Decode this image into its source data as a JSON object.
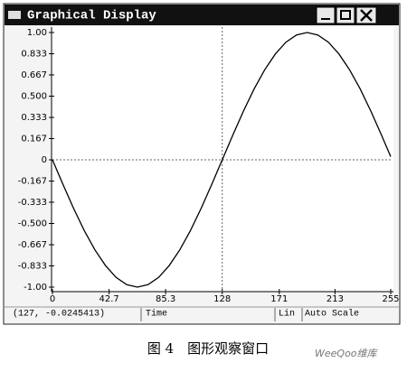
{
  "window": {
    "title": "Graphical Display"
  },
  "chart_data": {
    "type": "line",
    "x": [
      0,
      8,
      16,
      24,
      32,
      40,
      48,
      56,
      64,
      72,
      80,
      88,
      96,
      104,
      112,
      120,
      128,
      136,
      144,
      152,
      160,
      168,
      176,
      184,
      192,
      200,
      208,
      216,
      224,
      232,
      240,
      248,
      255
    ],
    "series": [
      {
        "color": "#000000",
        "values": [
          0,
          -0.195,
          -0.383,
          -0.556,
          -0.707,
          -0.831,
          -0.924,
          -0.981,
          -1,
          -0.981,
          -0.924,
          -0.831,
          -0.707,
          -0.556,
          -0.383,
          -0.195,
          0,
          0.195,
          0.383,
          0.556,
          0.707,
          0.831,
          0.924,
          0.981,
          1,
          0.981,
          0.924,
          0.831,
          0.707,
          0.556,
          0.383,
          0.195,
          0.025
        ]
      }
    ],
    "xlim": [
      0,
      255
    ],
    "xticks": [
      0,
      42.7,
      85.3,
      128,
      171,
      213,
      255
    ],
    "ylim": [
      -1,
      1
    ],
    "yticks": [
      {
        "value": 1,
        "label": "1.00"
      },
      0.833,
      0.667,
      {
        "value": 0.5,
        "label": "0.500"
      },
      0.333,
      0.167,
      0,
      -0.167,
      -0.333,
      {
        "value": -0.5,
        "label": "-0.500"
      },
      -0.667,
      -0.833,
      {
        "value": -1,
        "label": "-1.00"
      }
    ]
  },
  "status_bar": {
    "cursor": "(127, -0.0245413)",
    "axis": "Time",
    "scale": "Lin",
    "mode": "Auto Scale"
  },
  "caption": "图 4　图形观察窗口",
  "watermark": "WeeQoo维库"
}
